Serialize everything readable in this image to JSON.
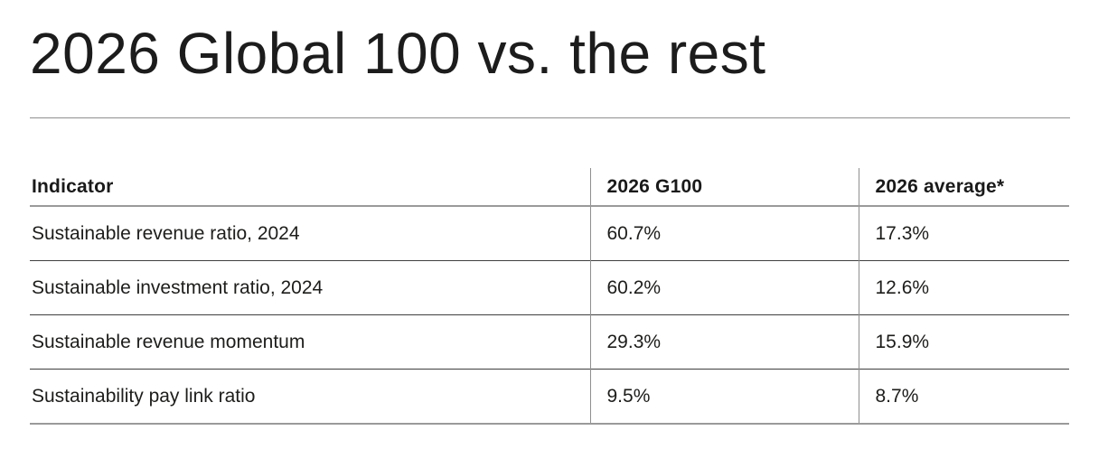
{
  "title": "2026 Global 100 vs. the rest",
  "table": {
    "columns": [
      "Indicator",
      "2026 G100",
      "2026 average*"
    ],
    "rows": [
      {
        "indicator": "Sustainable revenue ratio, 2024",
        "g100": "60.7%",
        "average": "17.3%"
      },
      {
        "indicator": "Sustainable investment ratio, 2024",
        "g100": "60.2%",
        "average": "12.6%"
      },
      {
        "indicator": "Sustainable revenue momentum",
        "g100": "29.3%",
        "average": "15.9%"
      },
      {
        "indicator": "Sustainability pay link ratio",
        "g100": "9.5%",
        "average": "8.7%"
      }
    ]
  },
  "colors": {
    "background": "#ffffff",
    "text": "#1d1d1b",
    "gray_rule": "#9a9a9a",
    "row_separator": "#3f3f3f"
  },
  "chart_data": {
    "type": "table",
    "title": "2026 Global 100 vs. the rest",
    "columns": [
      "Indicator",
      "2026 G100",
      "2026 average*"
    ],
    "categories": [
      "Sustainable revenue ratio, 2024",
      "Sustainable investment ratio, 2024",
      "Sustainable revenue momentum",
      "Sustainability pay link ratio"
    ],
    "series": [
      {
        "name": "2026 G100",
        "values": [
          60.7,
          60.2,
          29.3,
          9.5
        ]
      },
      {
        "name": "2026 average*",
        "values": [
          17.3,
          12.6,
          15.9,
          8.7
        ]
      }
    ],
    "unit": "%",
    "rows": [
      [
        "Sustainable revenue ratio, 2024",
        "60.7%",
        "17.3%"
      ],
      [
        "Sustainable investment ratio, 2024",
        "60.2%",
        "12.6%"
      ],
      [
        "Sustainable revenue momentum",
        "29.3%",
        "15.9%"
      ],
      [
        "Sustainability pay link ratio",
        "9.5%",
        "8.7%"
      ]
    ]
  }
}
